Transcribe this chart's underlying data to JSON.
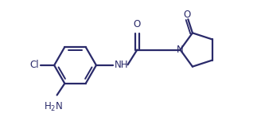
{
  "bg_color": "#ffffff",
  "line_color": "#2a2a6a",
  "text_color": "#2a2a6a",
  "line_width": 1.6,
  "font_size": 8.5,
  "figsize": [
    3.28,
    1.57
  ],
  "dpi": 100,
  "xlim": [
    0.5,
    5.2
  ],
  "ylim": [
    0.2,
    2.0
  ]
}
